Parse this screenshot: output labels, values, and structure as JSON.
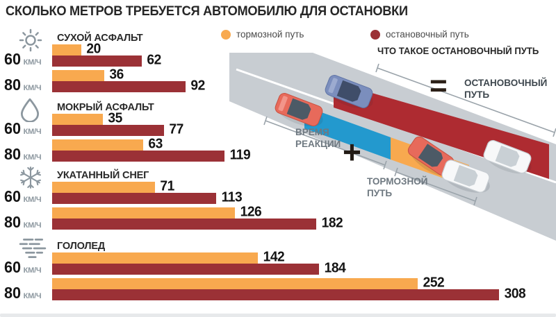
{
  "title": "СКОЛЬКО МЕТРОВ ТРЕБУЕТСЯ АВТОМОБИЛЮ ДЛЯ ОСТАНОВКИ",
  "legend": {
    "braking": {
      "label": "тормозной путь",
      "color": "#F8A94F"
    },
    "stopping": {
      "label": "остановочный путь",
      "color": "#9B3136"
    }
  },
  "chart_data": {
    "type": "bar",
    "orientation": "horizontal",
    "unit": "meters",
    "series_names": [
      "тормозной путь",
      "остановочный путь"
    ],
    "xlim": [
      0,
      308
    ],
    "sections": [
      {
        "condition": "СУХОЙ АСФАЛЬТ",
        "icon": "sun",
        "rows": [
          {
            "speed": "60",
            "speed_unit": "КМ/Ч",
            "braking": 20,
            "stopping": 62
          },
          {
            "speed": "80",
            "speed_unit": "КМ/Ч",
            "braking": 36,
            "stopping": 92
          }
        ]
      },
      {
        "condition": "МОКРЫЙ АСФАЛЬТ",
        "icon": "water-drop",
        "rows": [
          {
            "speed": "60",
            "speed_unit": "КМ/Ч",
            "braking": 35,
            "stopping": 77
          },
          {
            "speed": "80",
            "speed_unit": "КМ/Ч",
            "braking": 63,
            "stopping": 119
          }
        ]
      },
      {
        "condition": "УКАТАННЫЙ СНЕГ",
        "icon": "snowflake",
        "rows": [
          {
            "speed": "60",
            "speed_unit": "КМ/Ч",
            "braking": 71,
            "stopping": 113
          },
          {
            "speed": "80",
            "speed_unit": "КМ/Ч",
            "braking": 126,
            "stopping": 182
          }
        ]
      },
      {
        "condition": "ГОЛОЛЕД",
        "icon": "ice",
        "rows": [
          {
            "speed": "60",
            "speed_unit": "КМ/Ч",
            "braking": 142,
            "stopping": 184
          },
          {
            "speed": "80",
            "speed_unit": "КМ/Ч",
            "braking": 252,
            "stopping": 308
          }
        ]
      }
    ]
  },
  "diagram": {
    "title": "ЧТО ТАКОЕ ОСТАНОВОЧНЫЙ ПУТЬ",
    "reaction_label": "ВРЕМЯ РЕАКЦИИ",
    "plus": "+",
    "braking_label": "ТОРМОЗНОЙ ПУТЬ",
    "equals": "=",
    "stopping_label": "ОСТАНОВОЧНЫЙ ПУТЬ",
    "colors": {
      "road": "#C8CDD2",
      "reaction": "#2399CE",
      "braking": "#F8A94F",
      "stopping": "#AE2B31"
    }
  }
}
